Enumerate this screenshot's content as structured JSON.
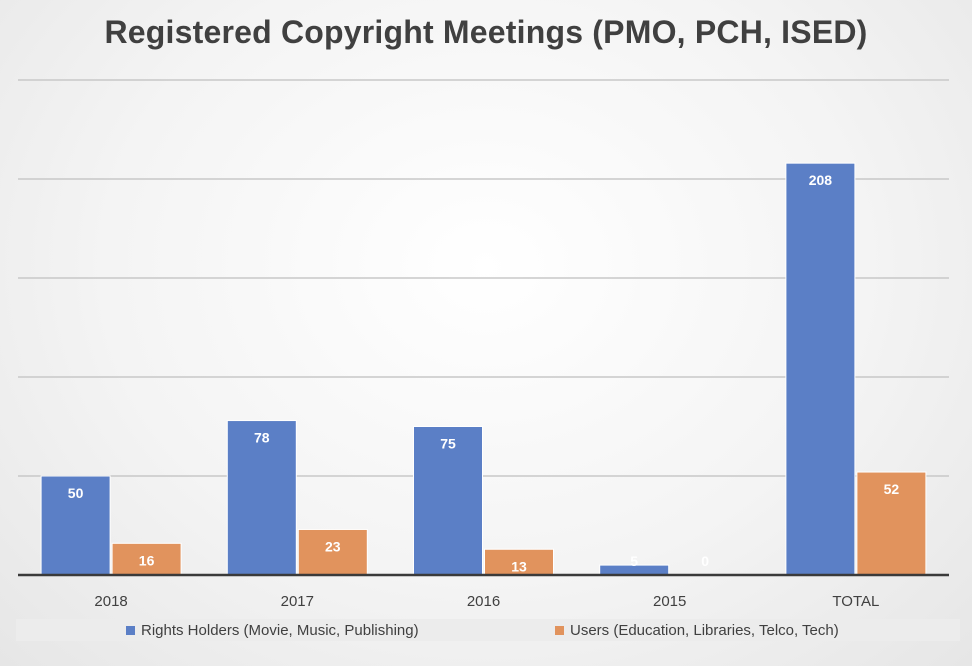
{
  "chart_data": {
    "type": "bar",
    "title": "Registered Copyright Meetings (PMO, PCH, ISED)",
    "categories": [
      "2018",
      "2017",
      "2016",
      "2015",
      "TOTAL"
    ],
    "series": [
      {
        "name": "Rights Holders (Movie, Music, Publishing)",
        "values": [
          50,
          78,
          75,
          5,
          208
        ],
        "color": "#5b7fc6"
      },
      {
        "name": "Users (Education, Libraries, Telco, Tech)",
        "values": [
          16,
          23,
          13,
          0,
          52
        ],
        "color": "#e1935d"
      }
    ],
    "ylim": [
      0,
      250
    ],
    "grid": true,
    "legend_position": "bottom"
  }
}
